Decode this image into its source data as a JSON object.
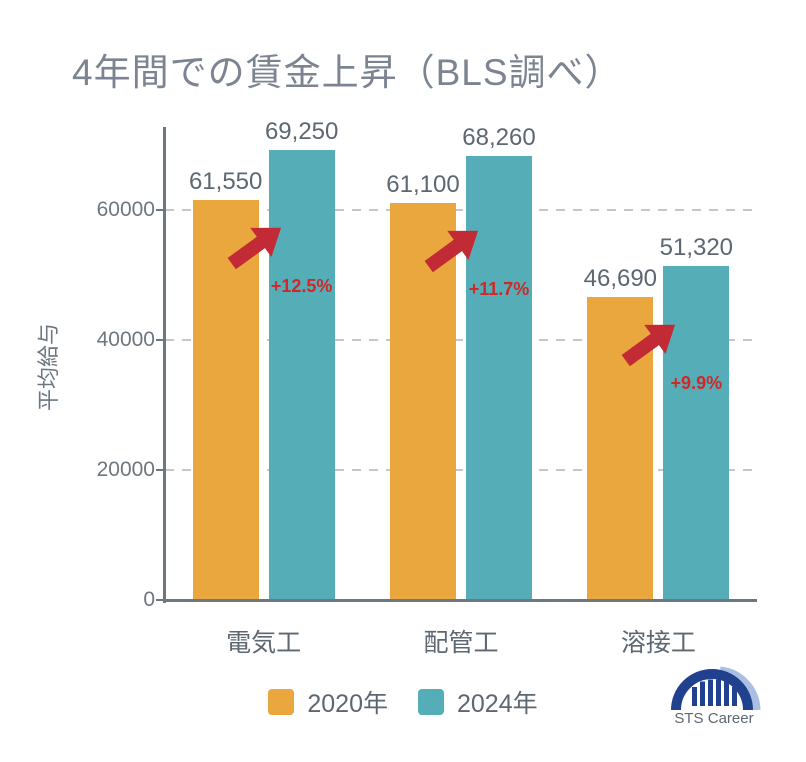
{
  "chart_data": {
    "type": "bar",
    "title": "4年間での賃金上昇（BLS調べ）",
    "ylabel": "平均給与",
    "xlabel": "",
    "categories": [
      "電気工",
      "配管工",
      "溶接工"
    ],
    "series": [
      {
        "name": "2020年",
        "color": "#EAA73E",
        "values": [
          61550,
          61100,
          46690
        ],
        "value_labels": [
          "61,550",
          "61,100",
          "46,690"
        ]
      },
      {
        "name": "2024年",
        "color": "#55AEB7",
        "values": [
          69250,
          68260,
          51320
        ],
        "value_labels": [
          "69,250",
          "68,260",
          "51,320"
        ]
      }
    ],
    "increase_labels": [
      "+12.5%",
      "+11.7%",
      "+9.9%"
    ],
    "yticks": [
      0,
      20000,
      40000,
      60000
    ],
    "ylim": [
      0,
      72800
    ],
    "grid": "dashed-horizontal-at-each-ytick",
    "legend_position": "bottom-center"
  },
  "legend": [
    {
      "label": "2020年",
      "color": "#EAA73E"
    },
    {
      "label": "2024年",
      "color": "#55AEB7"
    }
  ],
  "logo": {
    "text": "STS Career"
  },
  "colors": {
    "bar_2020": "#EAA73E",
    "bar_2024": "#55AEB7",
    "arrow_red": "#C22B35",
    "pct_red": "#D02828",
    "axis_gray": "#6E7780",
    "grid_gray": "#C6C6C6",
    "text_dark": "#5D6772",
    "title_gray": "#7B8490",
    "logo_navy": "#21418F",
    "logo_lightblue": "#A9BFE4"
  }
}
